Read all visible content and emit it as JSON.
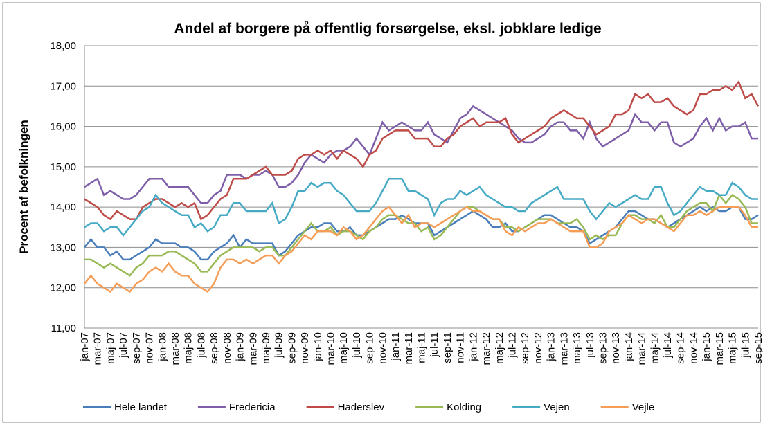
{
  "chart_data": {
    "type": "line",
    "title": "Andel af borgere på offentlig forsørgelse, eksl. jobklare ledige",
    "y_label": "Procent af befolkningen",
    "categories": [
      "jan-07",
      null,
      "mar-07",
      null,
      "maj-07",
      null,
      "jul-07",
      null,
      "sep-07",
      null,
      "nov-07",
      null,
      "jan-08",
      null,
      "mar-08",
      null,
      "maj-08",
      null,
      "jul-08",
      null,
      "sep-08",
      null,
      "nov-08",
      null,
      "jan-09",
      null,
      "mar-09",
      null,
      "maj-09",
      null,
      "jul-09",
      null,
      "sep-09",
      null,
      "nov-09",
      null,
      "jan-10",
      null,
      "mar-10",
      null,
      "maj-10",
      null,
      "jul-10",
      null,
      "sep-10",
      null,
      "nov-10",
      null,
      "jan-11",
      null,
      "mar-11",
      null,
      "maj-11",
      null,
      "jul-11",
      null,
      "sep-11",
      null,
      "nov-11",
      null,
      "jan-12",
      null,
      "mar-12",
      null,
      "maj-12",
      null,
      "jul-12",
      null,
      "sep-12",
      null,
      "nov-12",
      null,
      "jan-13",
      null,
      "mar-13",
      null,
      "maj-13",
      null,
      "jul-13",
      null,
      "sep-13",
      null,
      "nov-13",
      null,
      "jan-14",
      null,
      "mar-14",
      null,
      "maj-14",
      null,
      "jul-14",
      null,
      "sep-14",
      null,
      "nov-14",
      null,
      "jan-15",
      null,
      "mar-15",
      null,
      "maj-15",
      null,
      "jul-15",
      null,
      "sep-15"
    ],
    "series": [
      {
        "name": "Hele landet",
        "color": "#4a7ebb",
        "values": [
          13.0,
          13.2,
          13.0,
          13.0,
          12.8,
          12.9,
          12.7,
          12.7,
          12.8,
          12.9,
          13.0,
          13.2,
          13.1,
          13.1,
          13.1,
          13.0,
          13.0,
          12.9,
          12.7,
          12.7,
          12.9,
          13.0,
          13.1,
          13.3,
          13.0,
          13.2,
          13.1,
          13.1,
          13.1,
          13.1,
          12.8,
          12.9,
          13.1,
          13.3,
          13.4,
          13.5,
          13.5,
          13.6,
          13.6,
          13.4,
          13.4,
          13.5,
          13.3,
          13.3,
          13.4,
          13.5,
          13.6,
          13.7,
          13.7,
          13.8,
          13.7,
          13.6,
          13.6,
          13.6,
          13.3,
          13.4,
          13.5,
          13.6,
          13.7,
          13.8,
          13.9,
          13.8,
          13.7,
          13.5,
          13.5,
          13.6,
          13.4,
          13.4,
          13.5,
          13.6,
          13.7,
          13.8,
          13.8,
          13.7,
          13.6,
          13.5,
          13.5,
          13.4,
          13.1,
          13.2,
          13.3,
          13.4,
          13.5,
          13.7,
          13.9,
          13.9,
          13.8,
          13.7,
          13.7,
          13.6,
          13.5,
          13.6,
          13.7,
          13.8,
          13.9,
          14.0,
          13.9,
          14.0,
          13.9,
          13.9,
          14.0,
          14.0,
          13.7,
          13.7,
          13.8
        ]
      },
      {
        "name": "Fredericia",
        "color": "#7e5ea8",
        "values": [
          14.5,
          14.6,
          14.7,
          14.3,
          14.4,
          14.3,
          14.2,
          14.2,
          14.3,
          14.5,
          14.7,
          14.7,
          14.7,
          14.5,
          14.5,
          14.5,
          14.5,
          14.3,
          14.1,
          14.1,
          14.3,
          14.4,
          14.8,
          14.8,
          14.8,
          14.7,
          14.8,
          14.8,
          14.9,
          14.8,
          14.5,
          14.5,
          14.6,
          14.8,
          15.1,
          15.3,
          15.2,
          15.1,
          15.3,
          15.4,
          15.4,
          15.5,
          15.7,
          15.5,
          15.3,
          15.7,
          16.1,
          15.9,
          16.0,
          16.1,
          16.0,
          15.9,
          15.9,
          16.1,
          15.8,
          15.7,
          15.6,
          15.9,
          16.2,
          16.3,
          16.5,
          16.4,
          16.3,
          16.2,
          16.1,
          16.0,
          15.9,
          15.7,
          15.6,
          15.6,
          15.7,
          15.8,
          16.0,
          16.1,
          16.1,
          15.9,
          15.9,
          15.7,
          16.1,
          15.7,
          15.5,
          15.6,
          15.7,
          15.8,
          15.9,
          16.3,
          16.1,
          16.1,
          15.9,
          16.1,
          16.1,
          15.6,
          15.5,
          15.6,
          15.7,
          16.0,
          16.2,
          15.9,
          16.2,
          15.9,
          16.0,
          16.0,
          16.1,
          15.7,
          15.7
        ]
      },
      {
        "name": "Haderslev",
        "color": "#be4b48",
        "values": [
          14.2,
          14.1,
          14.0,
          13.8,
          13.7,
          13.9,
          13.8,
          13.7,
          13.7,
          14.0,
          14.1,
          14.2,
          14.2,
          14.1,
          14.0,
          14.1,
          14.0,
          14.1,
          13.7,
          13.8,
          14.0,
          14.2,
          14.3,
          14.7,
          14.7,
          14.7,
          14.8,
          14.9,
          15.0,
          14.8,
          14.8,
          14.8,
          14.9,
          15.2,
          15.3,
          15.3,
          15.4,
          15.3,
          15.4,
          15.2,
          15.4,
          15.3,
          15.2,
          15.0,
          15.3,
          15.4,
          15.7,
          15.8,
          15.9,
          15.9,
          15.9,
          15.7,
          15.7,
          15.7,
          15.5,
          15.5,
          15.7,
          15.8,
          16.0,
          16.1,
          16.2,
          16.0,
          16.1,
          16.1,
          16.1,
          16.2,
          15.8,
          15.6,
          15.7,
          15.8,
          15.9,
          16.0,
          16.2,
          16.3,
          16.4,
          16.3,
          16.2,
          16.2,
          16.0,
          15.8,
          15.9,
          16.0,
          16.3,
          16.3,
          16.4,
          16.8,
          16.7,
          16.8,
          16.6,
          16.6,
          16.7,
          16.5,
          16.4,
          16.3,
          16.4,
          16.8,
          16.8,
          16.9,
          16.9,
          17.0,
          16.9,
          17.1,
          16.7,
          16.8,
          16.5
        ]
      },
      {
        "name": "Kolding",
        "color": "#98b954",
        "values": [
          12.7,
          12.7,
          12.6,
          12.5,
          12.6,
          12.5,
          12.4,
          12.3,
          12.5,
          12.6,
          12.8,
          12.8,
          12.8,
          12.9,
          12.9,
          12.8,
          12.7,
          12.6,
          12.4,
          12.4,
          12.6,
          12.8,
          12.9,
          13.0,
          13.0,
          13.0,
          13.0,
          12.9,
          13.0,
          13.0,
          12.8,
          12.8,
          13.0,
          13.2,
          13.4,
          13.6,
          13.4,
          13.4,
          13.5,
          13.3,
          13.4,
          13.4,
          13.3,
          13.2,
          13.4,
          13.5,
          13.7,
          13.8,
          13.8,
          13.7,
          13.6,
          13.6,
          13.4,
          13.5,
          13.2,
          13.3,
          13.5,
          13.7,
          13.9,
          14.0,
          14.0,
          13.9,
          13.8,
          13.7,
          13.7,
          13.5,
          13.5,
          13.4,
          13.5,
          13.6,
          13.7,
          13.7,
          13.7,
          13.6,
          13.6,
          13.6,
          13.7,
          13.5,
          13.2,
          13.3,
          13.2,
          13.3,
          13.3,
          13.6,
          13.8,
          13.8,
          13.7,
          13.7,
          13.6,
          13.8,
          13.5,
          13.5,
          13.7,
          13.9,
          14.0,
          14.1,
          14.1,
          13.9,
          14.3,
          14.1,
          14.3,
          14.2,
          14.0,
          13.6,
          13.6
        ]
      },
      {
        "name": "Vejen",
        "color": "#46aac5",
        "values": [
          13.5,
          13.6,
          13.6,
          13.4,
          13.5,
          13.5,
          13.3,
          13.5,
          13.7,
          13.9,
          14.0,
          14.3,
          14.1,
          14.0,
          13.9,
          13.8,
          13.8,
          13.5,
          13.6,
          13.4,
          13.5,
          13.8,
          13.8,
          14.1,
          14.1,
          13.9,
          13.9,
          13.9,
          13.9,
          14.1,
          13.6,
          13.7,
          14.0,
          14.4,
          14.4,
          14.6,
          14.5,
          14.6,
          14.6,
          14.4,
          14.3,
          14.1,
          13.9,
          13.9,
          13.9,
          14.1,
          14.4,
          14.7,
          14.7,
          14.7,
          14.4,
          14.4,
          14.3,
          14.2,
          13.8,
          14.1,
          14.2,
          14.2,
          14.4,
          14.3,
          14.4,
          14.5,
          14.3,
          14.2,
          14.1,
          14.0,
          14.0,
          13.9,
          13.9,
          14.1,
          14.2,
          14.3,
          14.4,
          14.5,
          14.2,
          14.2,
          14.2,
          14.2,
          13.9,
          13.7,
          13.9,
          14.1,
          14.0,
          14.1,
          14.2,
          14.3,
          14.2,
          14.2,
          14.5,
          14.5,
          14.1,
          13.8,
          13.9,
          14.1,
          14.3,
          14.5,
          14.4,
          14.4,
          14.3,
          14.3,
          14.6,
          14.5,
          14.3,
          14.2,
          14.2
        ]
      },
      {
        "name": "Vejle",
        "color": "#f59d56",
        "values": [
          12.1,
          12.3,
          12.1,
          12.0,
          11.9,
          12.1,
          12.0,
          11.9,
          12.1,
          12.2,
          12.4,
          12.5,
          12.4,
          12.6,
          12.4,
          12.3,
          12.3,
          12.1,
          12.0,
          11.9,
          12.1,
          12.5,
          12.7,
          12.7,
          12.6,
          12.7,
          12.6,
          12.7,
          12.8,
          12.8,
          12.6,
          12.8,
          12.9,
          13.1,
          13.3,
          13.2,
          13.4,
          13.4,
          13.4,
          13.3,
          13.5,
          13.4,
          13.2,
          13.3,
          13.5,
          13.7,
          13.9,
          14.0,
          13.8,
          13.6,
          13.8,
          13.5,
          13.6,
          13.6,
          13.5,
          13.6,
          13.7,
          13.8,
          13.9,
          14.0,
          13.9,
          13.9,
          13.8,
          13.7,
          13.7,
          13.4,
          13.3,
          13.5,
          13.4,
          13.5,
          13.6,
          13.6,
          13.7,
          13.6,
          13.5,
          13.4,
          13.4,
          13.4,
          13.0,
          13.0,
          13.1,
          13.4,
          13.5,
          13.6,
          13.8,
          13.7,
          13.6,
          13.7,
          13.7,
          13.6,
          13.5,
          13.4,
          13.6,
          13.8,
          13.8,
          13.9,
          13.8,
          13.9,
          14.0,
          14.0,
          14.0,
          14.0,
          13.8,
          13.5,
          13.5
        ]
      }
    ],
    "ylim": [
      11,
      18
    ],
    "yticks": [
      {
        "value": 11,
        "label": "11,00"
      },
      {
        "value": 12,
        "label": "12,00"
      },
      {
        "value": 13,
        "label": "13,00"
      },
      {
        "value": 14,
        "label": "14,00"
      },
      {
        "value": 15,
        "label": "15,00"
      },
      {
        "value": 16,
        "label": "16,00"
      },
      {
        "value": 17,
        "label": "17,00"
      },
      {
        "value": 18,
        "label": "18,00"
      }
    ],
    "grid": true,
    "legend": "bottom"
  }
}
